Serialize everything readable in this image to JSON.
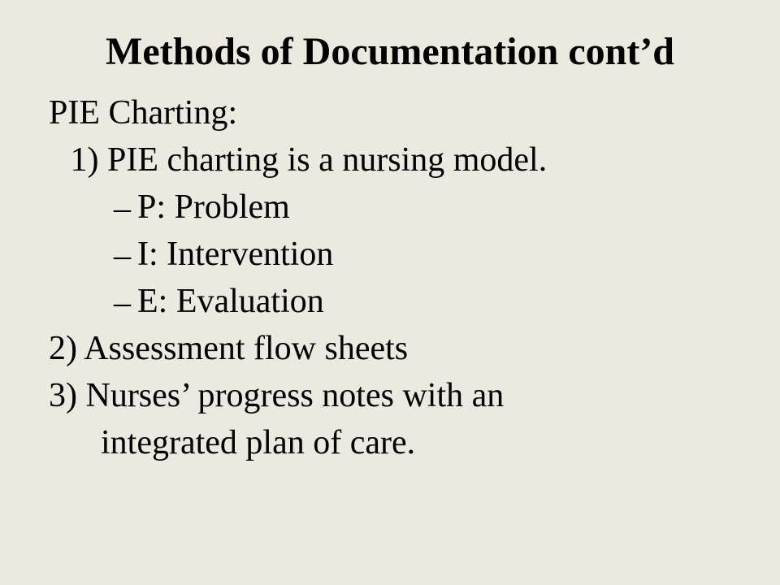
{
  "slide": {
    "background_color": "#ece9e1",
    "text_color": "#000000",
    "font_family": "Times New Roman",
    "title": {
      "text": "Methods of Documentation cont’d",
      "fontsize": 48,
      "bold": true,
      "align": "center"
    },
    "body": {
      "fontsize": 42,
      "lines": [
        {
          "text": "PIE Charting:",
          "indent": 0
        },
        {
          "text": "1)  PIE charting is a nursing model.",
          "indent": 1
        },
        {
          "text": "P: Problem",
          "indent": 2,
          "bullet": "dash"
        },
        {
          "text": "I:  Intervention",
          "indent": 2,
          "bullet": "dash"
        },
        {
          "text": "E: Evaluation",
          "indent": 2,
          "bullet": "dash"
        },
        {
          "text": "2) Assessment flow sheets",
          "indent": 0
        },
        {
          "text": "3)  Nurses’ progress notes with an",
          "indent": 0
        },
        {
          "text": "integrated plan of care.",
          "indent": 0,
          "continuation": true
        }
      ]
    }
  }
}
